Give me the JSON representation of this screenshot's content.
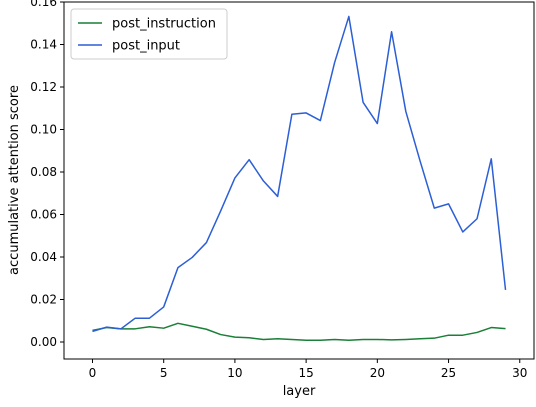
{
  "chart_data": {
    "type": "line",
    "title": "",
    "xlabel": "layer",
    "ylabel": "accumulative attention score",
    "xlim": [
      -2,
      31
    ],
    "ylim": [
      -0.008,
      0.16
    ],
    "xticks": [
      0,
      5,
      10,
      15,
      20,
      25,
      30
    ],
    "xtick_labels": [
      "0",
      "5",
      "10",
      "15",
      "20",
      "25",
      "30"
    ],
    "yticks": [
      0.0,
      0.02,
      0.04,
      0.06,
      0.08,
      0.1,
      0.12,
      0.14,
      0.16
    ],
    "ytick_labels": [
      "0.00",
      "0.02",
      "0.04",
      "0.06",
      "0.08",
      "0.10",
      "0.12",
      "0.14",
      "0.16"
    ],
    "grid": false,
    "legend_position": "top-left",
    "x": [
      0,
      1,
      2,
      3,
      4,
      5,
      6,
      7,
      8,
      9,
      10,
      11,
      12,
      13,
      14,
      15,
      16,
      17,
      18,
      19,
      20,
      21,
      22,
      23,
      24,
      25,
      26,
      27,
      28,
      29
    ],
    "series": [
      {
        "name": "post_instruction",
        "color": "#1a7f37",
        "values": [
          0.0055,
          0.0068,
          0.0062,
          0.0062,
          0.0072,
          0.0065,
          0.0088,
          0.0074,
          0.006,
          0.0035,
          0.0023,
          0.002,
          0.0012,
          0.0015,
          0.0012,
          0.0008,
          0.0008,
          0.0012,
          0.0008,
          0.0012,
          0.0012,
          0.001,
          0.0012,
          0.0015,
          0.0018,
          0.0032,
          0.0032,
          0.0045,
          0.0068,
          0.0063
        ]
      },
      {
        "name": "post_input",
        "color": "#2c5fd6",
        "values": [
          0.005,
          0.007,
          0.0062,
          0.0112,
          0.0112,
          0.0165,
          0.035,
          0.0398,
          0.0468,
          0.0617,
          0.0772,
          0.0858,
          0.0758,
          0.0685,
          0.1072,
          0.1078,
          0.1042,
          0.1315,
          0.1532,
          0.1128,
          0.1028,
          0.146,
          0.1085,
          0.0852,
          0.063,
          0.065,
          0.0518,
          0.058,
          0.0862,
          0.0245
        ]
      }
    ]
  }
}
